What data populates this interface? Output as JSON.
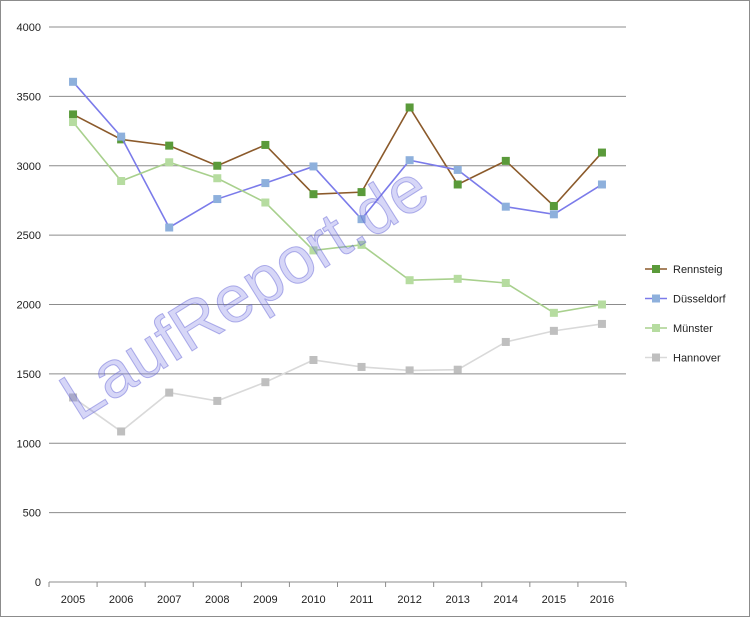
{
  "watermark": "LaufReport.de",
  "chart_data": {
    "type": "line",
    "title": "",
    "xlabel": "",
    "ylabel": "",
    "categories": [
      "2005",
      "2006",
      "2007",
      "2008",
      "2009",
      "2010",
      "2011",
      "2012",
      "2013",
      "2014",
      "2015",
      "2016"
    ],
    "ylim": [
      0,
      4000
    ],
    "yticks": [
      0,
      500,
      1000,
      1500,
      2000,
      2500,
      3000,
      3500,
      4000
    ],
    "grid": "horizontal",
    "legend_position": "right",
    "series": [
      {
        "name": "Rennsteig",
        "line_color": "#8b5a2b",
        "marker_color": "#5a9a3a",
        "values": [
          3370,
          3190,
          3145,
          3000,
          3150,
          2795,
          2810,
          3420,
          2865,
          3035,
          2710,
          3095
        ]
      },
      {
        "name": "Düsseldorf",
        "line_color": "#7b7bea",
        "marker_color": "#8eb0dc",
        "values": [
          3605,
          3210,
          2555,
          2760,
          2875,
          2995,
          2615,
          3040,
          2970,
          2705,
          2650,
          2865
        ]
      },
      {
        "name": "Münster",
        "line_color": "#a8d08d",
        "marker_color": "#b6dca0",
        "values": [
          3315,
          2890,
          3025,
          2910,
          2735,
          2390,
          2430,
          2175,
          2185,
          2155,
          1940,
          2000
        ]
      },
      {
        "name": "Hannover",
        "line_color": "#d9d9d9",
        "marker_color": "#bfbfbf",
        "values": [
          1330,
          1085,
          1365,
          1305,
          1440,
          1600,
          1550,
          1525,
          1530,
          1730,
          1810,
          1860
        ]
      }
    ]
  }
}
